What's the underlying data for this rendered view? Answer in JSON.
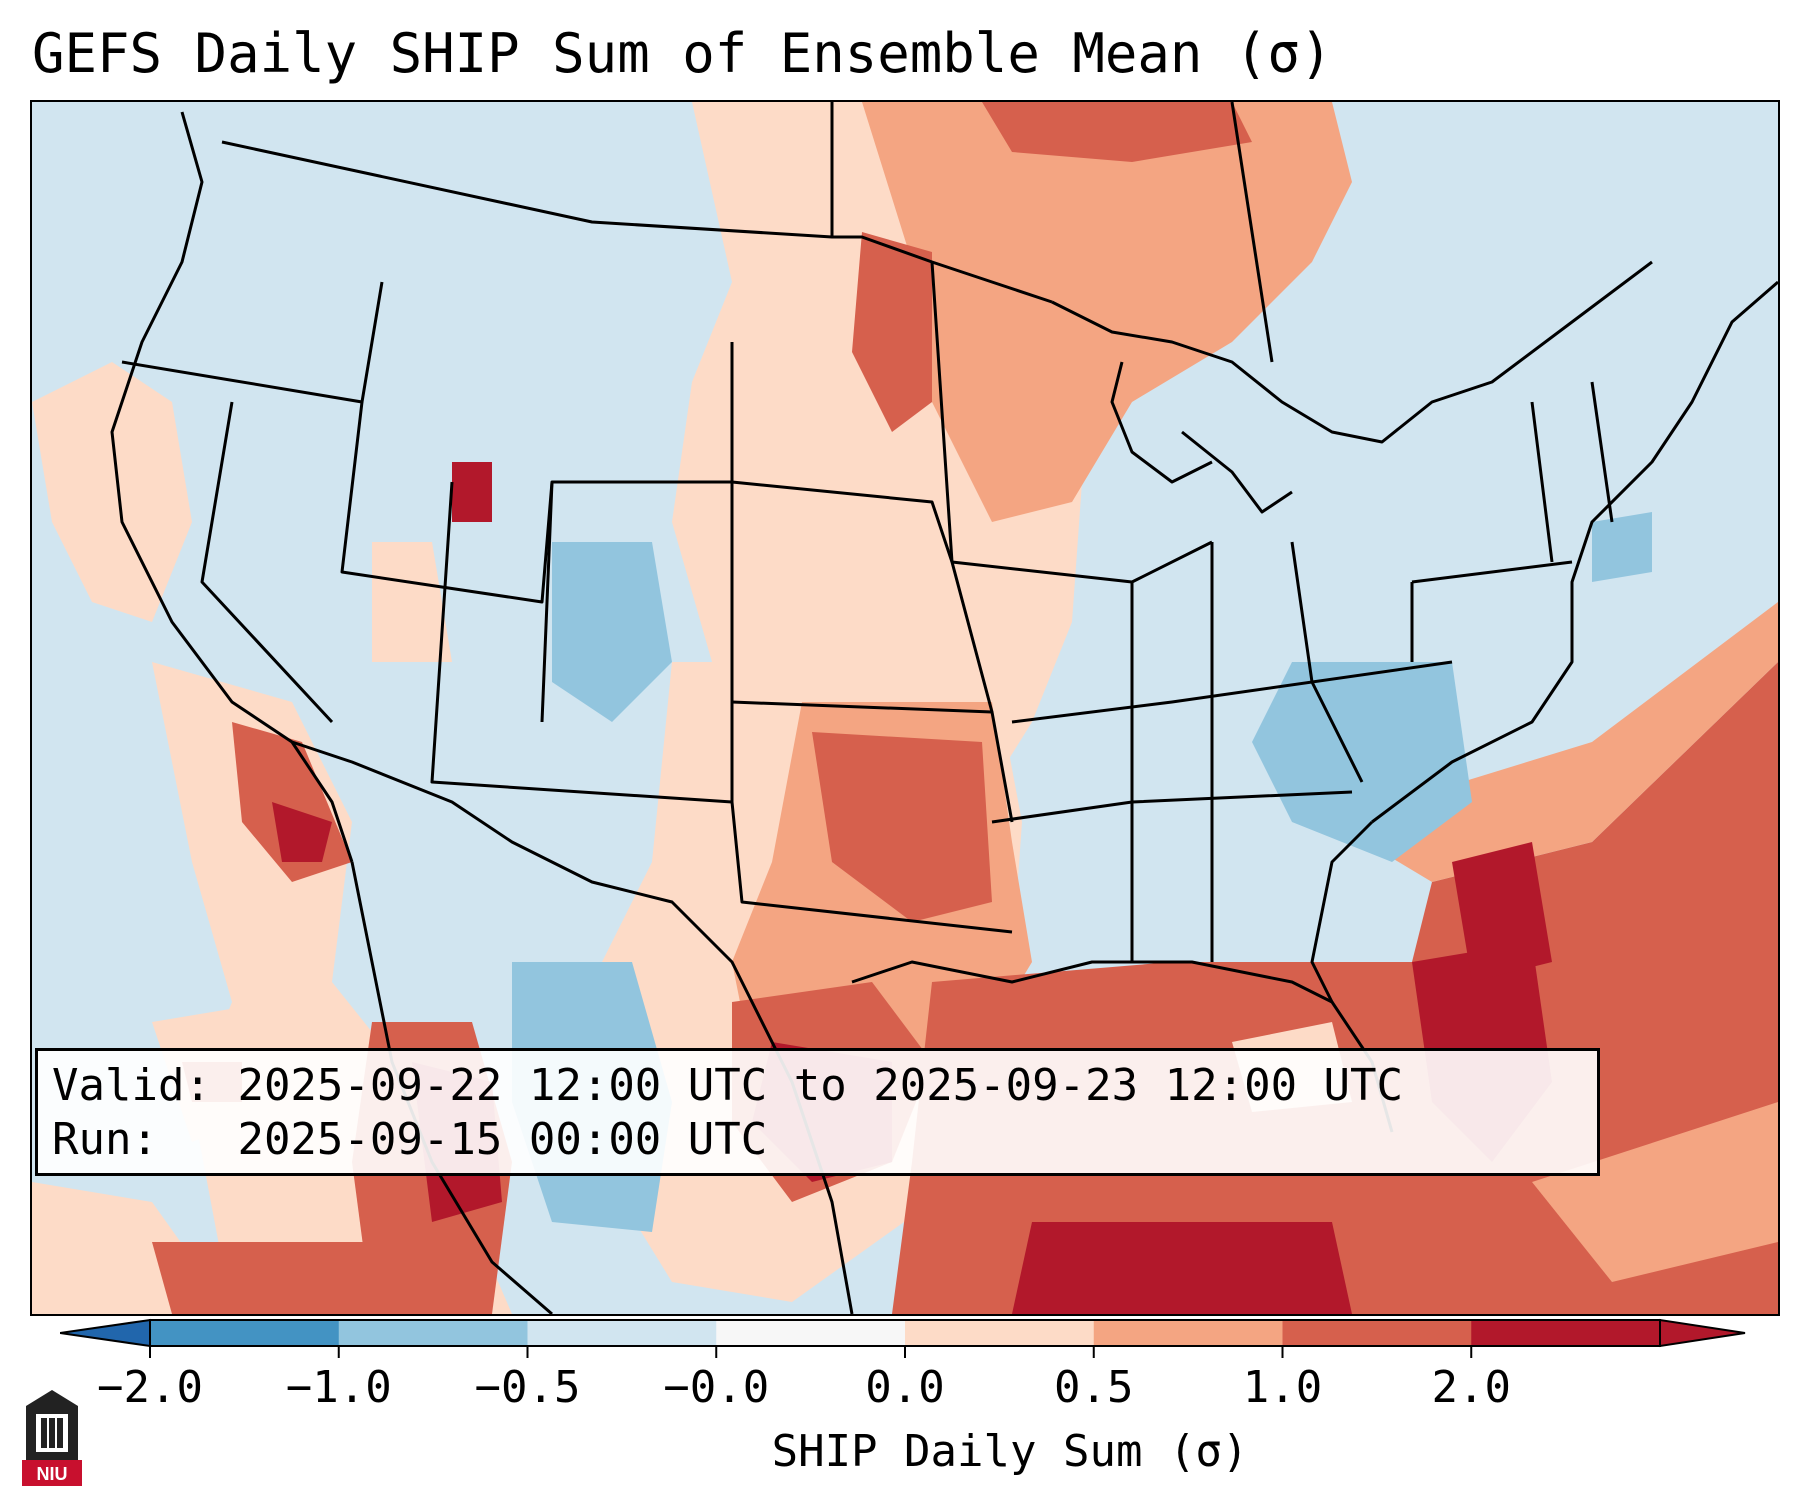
{
  "title": "GEFS Daily SHIP Sum of Ensemble Mean (σ)",
  "info": {
    "valid_label": "Valid:",
    "valid_value": "2025-09-22 12:00 UTC to 2025-09-23 12:00 UTC",
    "run_label": "Run:",
    "run_value": "2025-09-15 00:00 UTC"
  },
  "colorbar": {
    "label": "SHIP Daily Sum (σ)",
    "ticks": [
      "−2.0",
      "−1.0",
      "−0.5",
      "−0.0",
      "0.0",
      "0.5",
      "1.0",
      "2.0"
    ],
    "colors": [
      "#4393c3",
      "#92c5de",
      "#d1e5f0",
      "#f7f7f7",
      "#fddbc7",
      "#f4a582",
      "#d6604d",
      "#b2182b"
    ],
    "under_color": "#2166ac",
    "over_color": "#b2182b"
  },
  "logo": {
    "text": "NIU",
    "color": "#c8102e"
  }
}
